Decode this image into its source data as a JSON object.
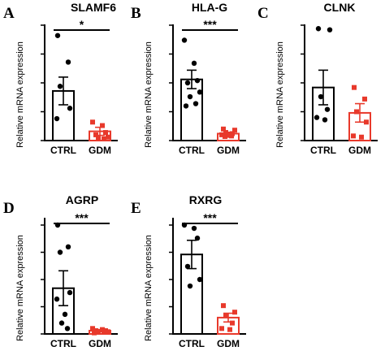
{
  "chart_data": [
    {
      "type": "bar",
      "panel": "A",
      "title": "SLAMF6",
      "ylabel": "Relative mRNA expression",
      "categories": [
        "CTRL",
        "GDM"
      ],
      "ylim": [
        0,
        1.0
      ],
      "series": [
        {
          "values": [
            0.43,
            0.08
          ],
          "error": [
            0.12,
            0.035
          ],
          "points": [
            [
              0.91,
              0.68,
              0.47,
              0.28,
              0.19
            ],
            [
              0.16,
              0.13,
              0.07,
              0.05,
              0.03,
              0.02,
              0.015
            ]
          ]
        }
      ],
      "significance": "*"
    },
    {
      "type": "bar",
      "panel": "B",
      "title": "HLA-G",
      "ylabel": "Relative mRNA expression",
      "categories": [
        "CTRL",
        "GDM"
      ],
      "ylim": [
        0,
        1.0
      ],
      "series": [
        {
          "values": [
            0.53,
            0.06
          ],
          "error": [
            0.08,
            0.012
          ],
          "points": [
            [
              0.87,
              0.67,
              0.52,
              0.5,
              0.42,
              0.38,
              0.32,
              0.3
            ],
            [
              0.1,
              0.09,
              0.07,
              0.06,
              0.05,
              0.045,
              0.04,
              0.035
            ]
          ]
        }
      ],
      "significance": "***"
    },
    {
      "type": "bar",
      "panel": "C",
      "title": "CLNK",
      "ylabel": "Relative mRNA expression",
      "categories": [
        "CTRL",
        "GDM"
      ],
      "ylim": [
        0,
        1.0
      ],
      "series": [
        {
          "values": [
            0.46,
            0.24
          ],
          "error": [
            0.15,
            0.08
          ],
          "points": [
            [
              0.97,
              0.96,
              0.38,
              0.27,
              0.2,
              0.18
            ],
            [
              0.46,
              0.36,
              0.25,
              0.16,
              0.04,
              0.03
            ]
          ]
        }
      ]
    },
    {
      "type": "bar",
      "panel": "D",
      "title": "AGRP",
      "ylabel": "Relative mRNA expression",
      "categories": [
        "CTRL",
        "GDM"
      ],
      "ylim": [
        0,
        1.0
      ],
      "series": [
        {
          "values": [
            0.42,
            0.03
          ],
          "error": [
            0.16,
            0.01
          ],
          "points": [
            [
              1.0,
              0.8,
              0.75,
              0.38,
              0.32,
              0.18,
              0.1,
              0.05
            ],
            [
              0.05,
              0.04,
              0.03,
              0.03,
              0.02,
              0.02,
              0.02,
              0.01
            ]
          ]
        }
      ],
      "significance": "***"
    },
    {
      "type": "bar",
      "panel": "E",
      "title": "RXRG",
      "ylabel": "Relative mRNA expression",
      "categories": [
        "CTRL",
        "GDM"
      ],
      "ylim": [
        0,
        1.0
      ],
      "series": [
        {
          "values": [
            0.73,
            0.15
          ],
          "error": [
            0.13,
            0.04
          ],
          "points": [
            [
              1.0,
              0.97,
              0.88,
              0.62,
              0.5,
              0.44
            ],
            [
              0.26,
              0.2,
              0.17,
              0.1,
              0.05,
              0.04
            ]
          ]
        }
      ],
      "significance": "***"
    }
  ],
  "colors": {
    "ctrl": "#000000",
    "gdm": "#e8392b"
  }
}
